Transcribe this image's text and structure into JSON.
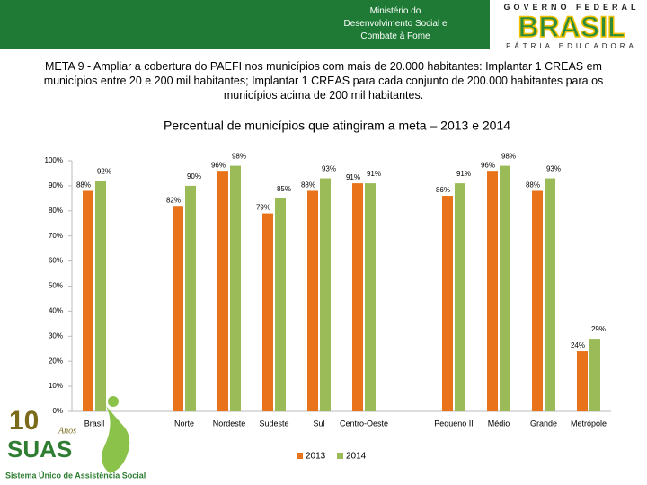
{
  "header": {
    "ministry": [
      "Ministério do",
      "Desenvolvimento Social e",
      "Combate à Fome"
    ],
    "logo": {
      "top": "GOVERNO FEDERAL",
      "main": "BRASIL",
      "bottom": "PÁTRIA EDUCADORA"
    }
  },
  "description": "META 9 - Ampliar a cobertura do PAEFI nos municípios com mais de 20.000 habitantes: Implantar 1 CREAS em municípios entre 20 e 200 mil habitantes;  Implantar 1 CREAS para cada conjunto de 200.000  habitantes para os municípios acima de 200 mil habitantes.",
  "chart_data": {
    "type": "bar",
    "title": "Percentual de municípios que atingiram a meta – 2013 e 2014",
    "categories": [
      "Brasil",
      null,
      "Norte",
      "Nordeste",
      "Sudeste",
      "Sul",
      "Centro-Oeste",
      null,
      "Pequeno II",
      "Médio",
      "Grande",
      "Metrópole"
    ],
    "series": [
      {
        "name": "2013",
        "color": "#e8731a",
        "values": [
          88,
          null,
          82,
          96,
          79,
          88,
          91,
          null,
          86,
          96,
          88,
          24
        ],
        "value_labels": [
          "88%",
          null,
          "82%",
          "96%",
          "79%",
          "88%",
          "91%",
          null,
          "86%",
          "96%",
          "88%",
          "24%"
        ]
      },
      {
        "name": "2014",
        "color": "#9bbb59",
        "values": [
          92,
          null,
          90,
          98,
          85,
          93,
          91,
          null,
          91,
          98,
          93,
          29
        ],
        "value_labels": [
          "92%",
          null,
          "90%",
          "98%",
          "85%",
          "93%",
          "91%",
          null,
          "91%",
          "98%",
          "93%",
          "29%"
        ]
      }
    ],
    "ylim": [
      0,
      100
    ],
    "yticks": [
      {
        "value": 0,
        "label": "0%"
      },
      {
        "value": 10,
        "label": "10%"
      },
      {
        "value": 20,
        "label": "20%"
      },
      {
        "value": 30,
        "label": "30%"
      },
      {
        "value": 40,
        "label": "40%"
      },
      {
        "value": 50,
        "label": "50%"
      },
      {
        "value": 60,
        "label": "60%"
      },
      {
        "value": 70,
        "label": "70%"
      },
      {
        "value": 80,
        "label": "80%"
      },
      {
        "value": 90,
        "label": "90%"
      },
      {
        "value": 100,
        "label": "100%"
      }
    ],
    "legend": "bottom"
  },
  "footer_logo": {
    "number": "10",
    "anos": "Anos",
    "name": "SUAS",
    "subtitle": "Sistema Único de Assistência Social"
  }
}
